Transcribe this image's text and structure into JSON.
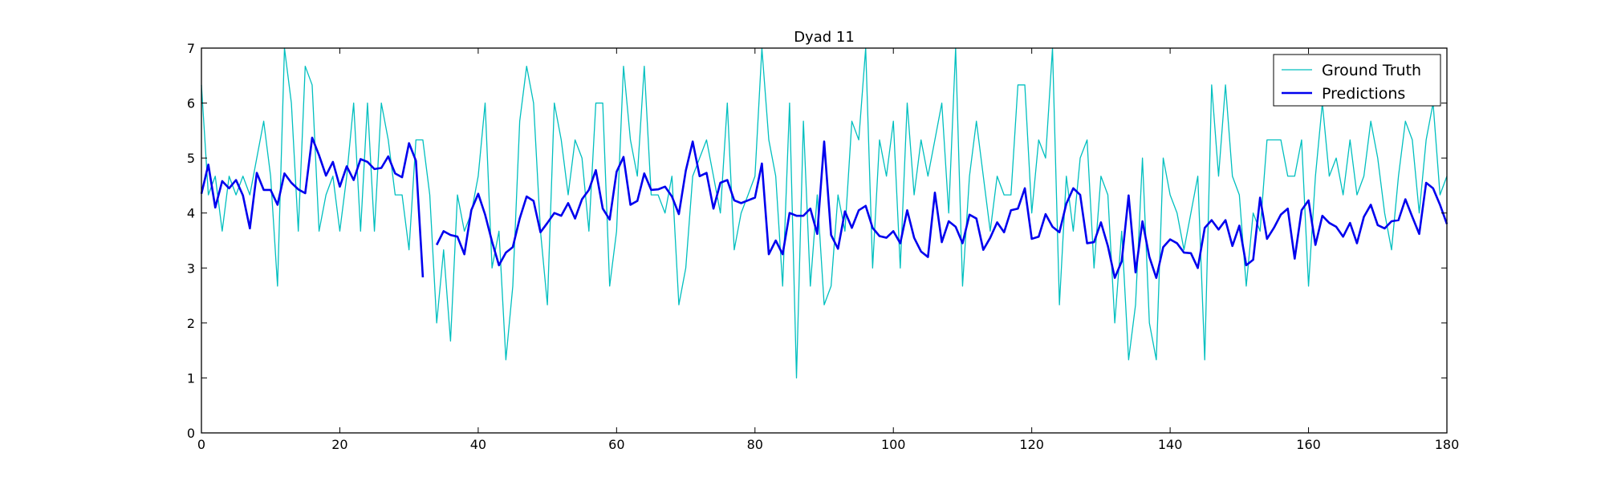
{
  "chart_data": {
    "type": "line",
    "title": "Dyad 11",
    "xlabel": "",
    "ylabel": "",
    "xlim": [
      0,
      180
    ],
    "ylim": [
      0,
      7
    ],
    "xticks": [
      0,
      20,
      40,
      60,
      80,
      100,
      120,
      140,
      160,
      180
    ],
    "yticks": [
      0,
      1,
      2,
      3,
      4,
      5,
      6,
      7
    ],
    "grid": false,
    "legend_position": "top-right",
    "series": [
      {
        "name": "Ground Truth",
        "color": "#00bfbf",
        "linewidth": 1.3,
        "values": [
          6.33,
          4.33,
          4.67,
          3.67,
          4.67,
          4.33,
          4.67,
          4.33,
          5.0,
          5.67,
          4.67,
          2.67,
          7.0,
          6.0,
          3.67,
          6.67,
          6.33,
          3.67,
          4.33,
          4.67,
          3.67,
          4.67,
          6.0,
          3.67,
          6.0,
          3.67,
          6.0,
          5.33,
          4.33,
          4.33,
          3.33,
          5.33,
          5.33,
          4.33,
          2.0,
          3.33,
          1.67,
          4.33,
          3.67,
          4.0,
          4.67,
          6.0,
          3.0,
          3.67,
          1.33,
          2.67,
          5.67,
          6.67,
          6.0,
          3.67,
          2.33,
          6.0,
          5.33,
          4.33,
          5.33,
          5.0,
          3.67,
          6.0,
          6.0,
          2.67,
          3.67,
          6.67,
          5.33,
          4.67,
          6.67,
          4.33,
          4.33,
          4.0,
          4.67,
          2.33,
          3.0,
          4.67,
          5.0,
          5.33,
          4.67,
          4.0,
          6.0,
          3.33,
          4.0,
          4.33,
          4.67,
          7.0,
          5.33,
          4.67,
          2.67,
          6.0,
          1.0,
          5.67,
          2.67,
          4.33,
          2.33,
          2.67,
          4.33,
          3.67,
          5.67,
          5.33,
          7.0,
          3.0,
          5.33,
          4.67,
          5.67,
          3.0,
          6.0,
          4.33,
          5.33,
          4.67,
          5.33,
          6.0,
          4.0,
          7.0,
          2.67,
          4.67,
          5.67,
          4.67,
          3.67,
          4.67,
          4.33,
          4.33,
          6.33,
          6.33,
          4.0,
          5.33,
          5.0,
          7.0,
          2.33,
          4.67,
          3.67,
          5.0,
          5.33,
          3.0,
          4.67,
          4.33,
          2.0,
          3.67,
          1.33,
          2.33,
          5.0,
          2.0,
          1.33,
          5.0,
          4.33,
          4.0,
          3.33,
          4.0,
          4.67,
          1.33,
          6.33,
          4.67,
          6.33,
          4.67,
          4.33,
          2.67,
          4.0,
          3.67,
          5.33,
          5.33,
          5.33,
          4.67,
          4.67,
          5.33,
          2.67,
          4.67,
          6.0,
          4.67,
          5.0,
          4.33,
          5.33,
          4.33,
          4.67,
          5.67,
          5.0,
          4.0,
          3.33,
          4.67,
          5.67,
          5.33,
          4.0,
          5.33,
          6.0,
          4.33,
          4.67
        ]
      },
      {
        "name": "Predictions",
        "color": "#0000ee",
        "linewidth": 2.6,
        "values": [
          4.35,
          4.88,
          4.1,
          4.58,
          4.45,
          4.6,
          4.32,
          3.72,
          4.73,
          4.42,
          4.42,
          4.15,
          4.72,
          4.55,
          4.43,
          4.36,
          5.37,
          5.05,
          4.68,
          4.93,
          4.48,
          4.85,
          4.6,
          4.98,
          4.93,
          4.8,
          4.82,
          5.03,
          4.72,
          4.65,
          5.27,
          4.95,
          2.83,
          null,
          3.42,
          3.67,
          3.6,
          3.57,
          3.25,
          4.05,
          4.35,
          3.97,
          3.48,
          3.05,
          3.28,
          3.38,
          3.9,
          4.3,
          4.22,
          3.65,
          3.82,
          4.0,
          3.95,
          4.18,
          3.9,
          4.25,
          4.42,
          4.78,
          4.08,
          3.88,
          4.75,
          5.02,
          4.15,
          4.22,
          4.72,
          4.42,
          4.43,
          4.48,
          4.3,
          3.98,
          4.77,
          5.3,
          4.67,
          4.73,
          4.08,
          4.55,
          4.6,
          4.23,
          4.18,
          4.23,
          4.28,
          4.9,
          3.25,
          3.5,
          3.25,
          4.0,
          3.95,
          3.95,
          4.08,
          3.62,
          5.3,
          3.6,
          3.35,
          4.03,
          3.73,
          4.05,
          4.13,
          3.73,
          3.58,
          3.55,
          3.67,
          3.45,
          4.05,
          3.55,
          3.3,
          3.2,
          4.37,
          3.47,
          3.85,
          3.75,
          3.45,
          3.97,
          3.9,
          3.33,
          3.55,
          3.83,
          3.65,
          4.05,
          4.08,
          4.45,
          3.53,
          3.57,
          3.98,
          3.75,
          3.65,
          4.17,
          4.45,
          4.33,
          3.45,
          3.47,
          3.83,
          3.4,
          2.82,
          3.12,
          4.32,
          2.92,
          3.85,
          3.2,
          2.82,
          3.38,
          3.52,
          3.45,
          3.28,
          3.27,
          3.0,
          3.73,
          3.87,
          3.7,
          3.87,
          3.4,
          3.77,
          3.05,
          3.15,
          4.28,
          3.53,
          3.73,
          3.97,
          4.08,
          3.17,
          4.05,
          4.23,
          3.42,
          3.95,
          3.82,
          3.75,
          3.57,
          3.82,
          3.45,
          3.93,
          4.15,
          3.78,
          3.72,
          3.85,
          3.87,
          4.25,
          3.93,
          3.62,
          4.55,
          4.45,
          4.15,
          3.8
        ]
      }
    ]
  }
}
